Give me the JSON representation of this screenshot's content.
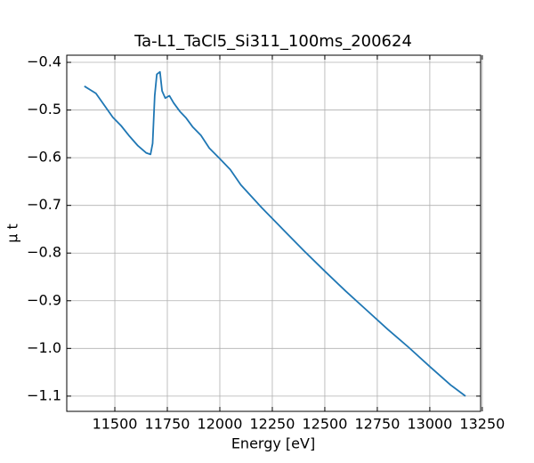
{
  "chart_data": {
    "type": "line",
    "title": "Ta-L1_TaCl5_Si311_100ms_200624",
    "xlabel": "Energy [eV]",
    "ylabel": "μ t",
    "x": [
      11355,
      11380,
      11410,
      11450,
      11490,
      11530,
      11570,
      11610,
      11650,
      11670,
      11680,
      11690,
      11700,
      11715,
      11725,
      11740,
      11760,
      11780,
      11810,
      11840,
      11870,
      11910,
      11950,
      12000,
      12050,
      12100,
      12200,
      12300,
      12400,
      12500,
      12600,
      12700,
      12800,
      12900,
      13000,
      13100,
      13170
    ],
    "series": [
      {
        "color": "#1f77b4",
        "values": [
          -0.45,
          -0.457,
          -0.465,
          -0.49,
          -0.515,
          -0.533,
          -0.555,
          -0.575,
          -0.59,
          -0.593,
          -0.57,
          -0.47,
          -0.425,
          -0.42,
          -0.46,
          -0.475,
          -0.47,
          -0.485,
          -0.503,
          -0.517,
          -0.535,
          -0.553,
          -0.58,
          -0.602,
          -0.625,
          -0.657,
          -0.705,
          -0.75,
          -0.795,
          -0.838,
          -0.88,
          -0.92,
          -0.96,
          -0.998,
          -1.038,
          -1.077,
          -1.1
        ]
      }
    ],
    "xlim": [
      11271,
      13242
    ],
    "ylim": [
      -1.132,
      -0.385
    ],
    "xticks": [
      11500,
      11750,
      12000,
      12250,
      12500,
      12750,
      13000,
      13250
    ],
    "yticks": [
      {
        "value": -0.4,
        "label": "−0.4"
      },
      {
        "value": -0.5,
        "label": "−0.5"
      },
      {
        "value": -0.6,
        "label": "−0.6"
      },
      {
        "value": -0.7,
        "label": "−0.7"
      },
      {
        "value": -0.8,
        "label": "−0.8"
      },
      {
        "value": -0.9,
        "label": "−0.9"
      },
      {
        "value": -1.0,
        "label": "−1.0"
      },
      {
        "value": -1.1,
        "label": "−1.1"
      }
    ],
    "grid": true
  }
}
